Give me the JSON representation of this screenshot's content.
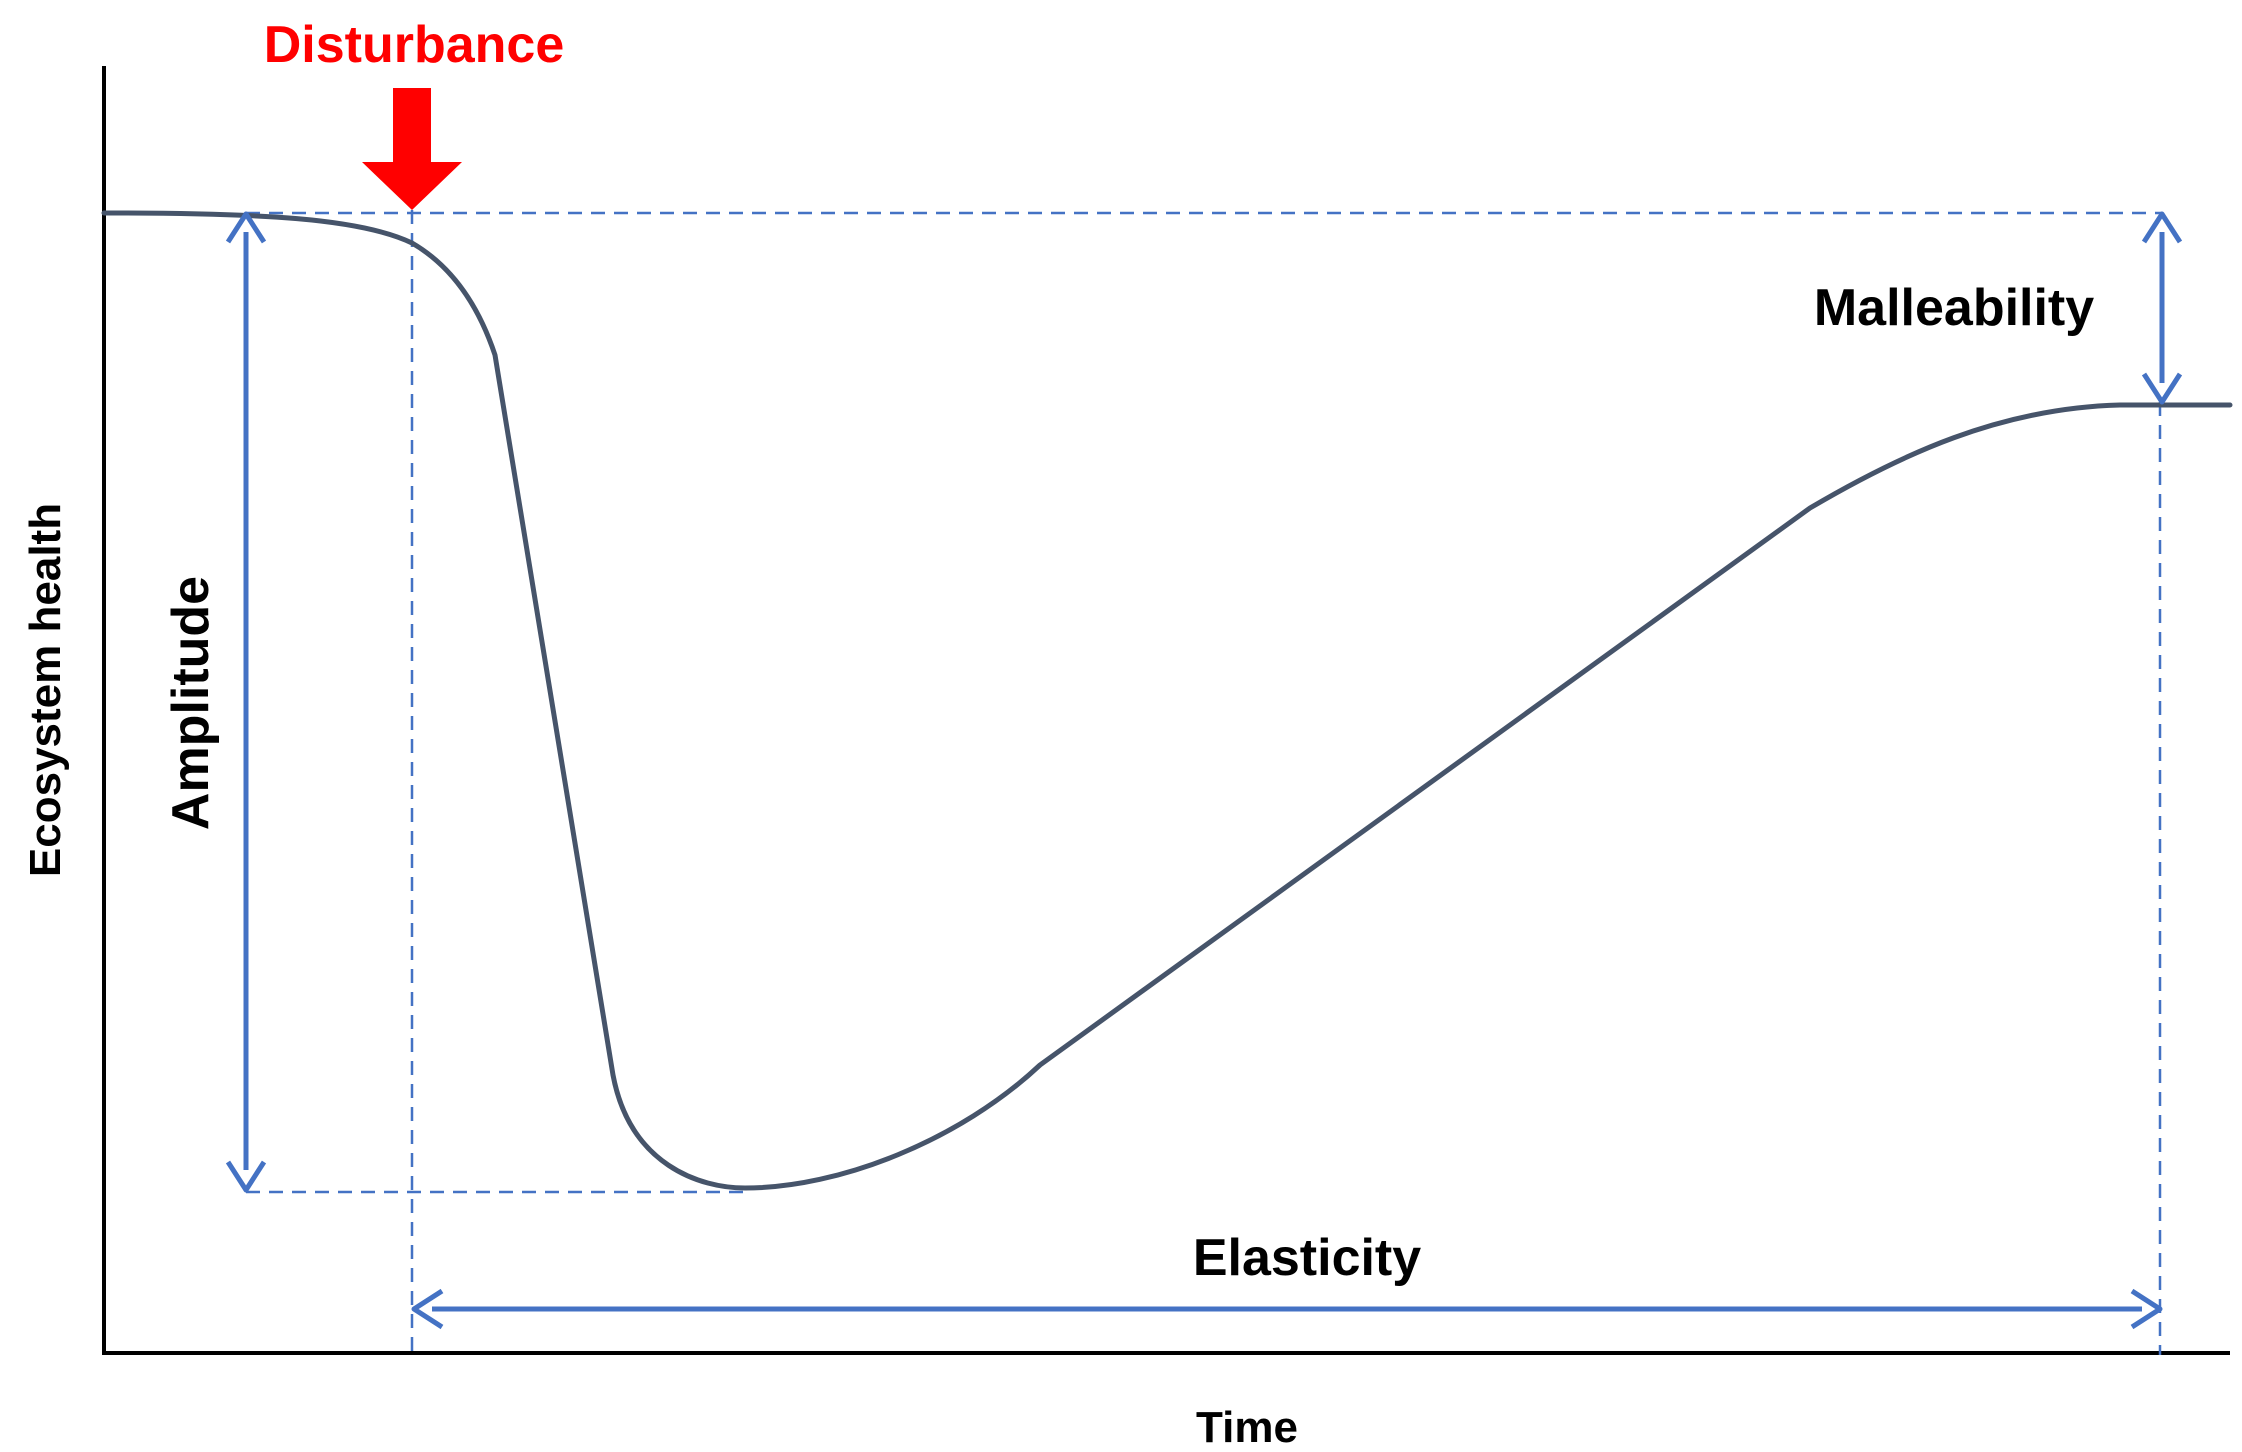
{
  "labels": {
    "disturbance": "Disturbance",
    "malleability": "Malleability",
    "amplitude": "Amplitude",
    "elasticity": "Elasticity",
    "x_axis": "Time",
    "y_axis": "Ecosystem health"
  },
  "colors": {
    "curve": "#46546A",
    "annotation": "#4472C4",
    "disturbance": "#FF0000",
    "axis": "#000000",
    "text": "#000000"
  }
}
